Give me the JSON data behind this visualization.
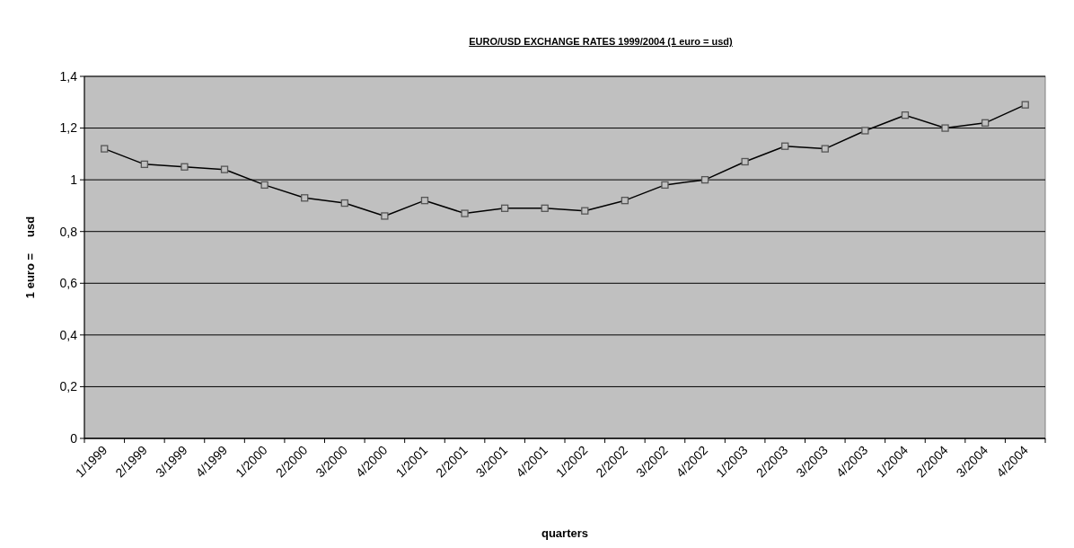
{
  "chart_data": {
    "type": "line",
    "title": "EURO/USD EXCHANGE RATES 1999/2004 (1 euro = usd)",
    "xlabel": "quarters",
    "ylabel": "1 euro =     usd",
    "categories": [
      "1/1999",
      "2/1999",
      "3/1999",
      "4/1999",
      "1/2000",
      "2/2000",
      "3/2000",
      "4/2000",
      "1/2001",
      "2/2001",
      "3/2001",
      "4/2001",
      "1/2002",
      "2/2002",
      "3/2002",
      "4/2002",
      "1/2003",
      "2/2003",
      "3/2003",
      "4/2003",
      "1/2004",
      "2/2004",
      "3/2004",
      "4/2004"
    ],
    "series": [
      {
        "color": "#000000",
        "values": [
          1.12,
          1.06,
          1.05,
          1.04,
          0.98,
          0.93,
          0.91,
          0.86,
          0.92,
          0.87,
          0.89,
          0.89,
          0.88,
          0.92,
          0.98,
          1.0,
          1.07,
          1.13,
          1.12,
          1.19,
          1.25,
          1.2,
          1.22,
          1.29
        ]
      }
    ],
    "ylim": [
      0,
      1.4
    ],
    "yticks": [
      0,
      {
        "value": 0.2,
        "label": "0,2"
      },
      {
        "value": 0.4,
        "label": "0,4"
      },
      {
        "value": 0.6,
        "label": "0,6"
      },
      {
        "value": 0.8,
        "label": "0,8"
      },
      1,
      {
        "value": 1.2,
        "label": "1,2"
      },
      {
        "value": 1.4,
        "label": "1,4"
      }
    ],
    "grid": "y",
    "marker": "square",
    "line_style": "solid"
  }
}
